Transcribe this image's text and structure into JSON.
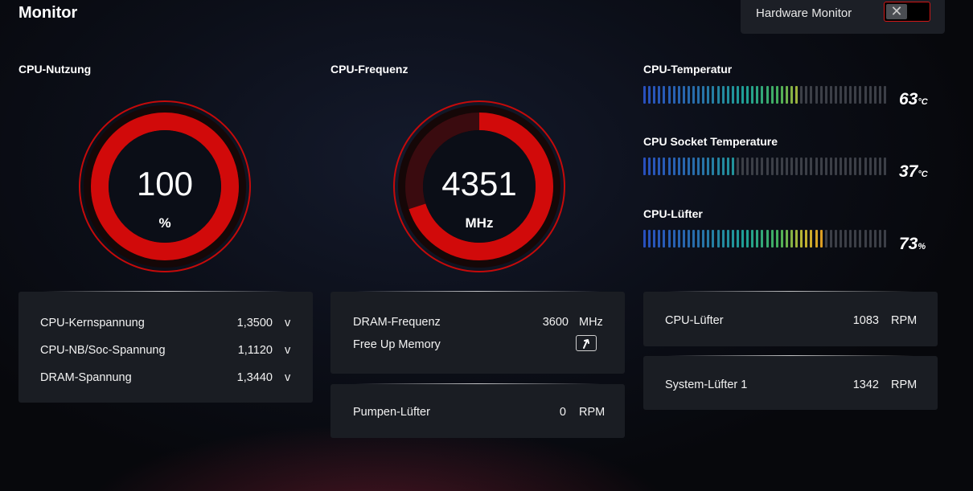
{
  "header": {
    "title": "Monitor"
  },
  "hardware_monitor": {
    "label": "Hardware Monitor",
    "toggle_icon": "✕",
    "enabled": false
  },
  "cpu_usage": {
    "label": "CPU-Nutzung",
    "value": "100",
    "unit": "%",
    "fraction": 1.0
  },
  "cpu_freq": {
    "label": "CPU-Frequenz",
    "value": "4351",
    "unit": "MHz",
    "fraction": 0.7
  },
  "indicators": [
    {
      "label": "CPU-Temperatur",
      "value": "63",
      "unit": "°C",
      "level": 0.63
    },
    {
      "label": "CPU Socket Temperature",
      "value": "37",
      "unit": "°C",
      "level": 0.37
    },
    {
      "label": "CPU-Lüfter",
      "value": "73",
      "unit": "%",
      "level": 0.73
    }
  ],
  "voltages": [
    {
      "label": "CPU-Kernspannung",
      "value": "1,3500",
      "unit": "v"
    },
    {
      "label": "CPU-NB/Soc-Spannung",
      "value": "1,1120",
      "unit": "v"
    },
    {
      "label": "DRAM-Spannung",
      "value": "1,3440",
      "unit": "v"
    }
  ],
  "dram": {
    "label": "DRAM-Frequenz",
    "value": "3600",
    "unit": "MHz",
    "free_up_label": "Free Up Memory"
  },
  "pump_fan": {
    "label": "Pumpen-Lüfter",
    "value": "0",
    "unit": "RPM"
  },
  "cpu_fan": {
    "label": "CPU-Lüfter",
    "value": "1083",
    "unit": "RPM"
  },
  "sys_fan1": {
    "label": "System-Lüfter 1",
    "value": "1342",
    "unit": "RPM"
  },
  "colors": {
    "accent": "#d10a0a",
    "panel": "#1a1d23"
  }
}
